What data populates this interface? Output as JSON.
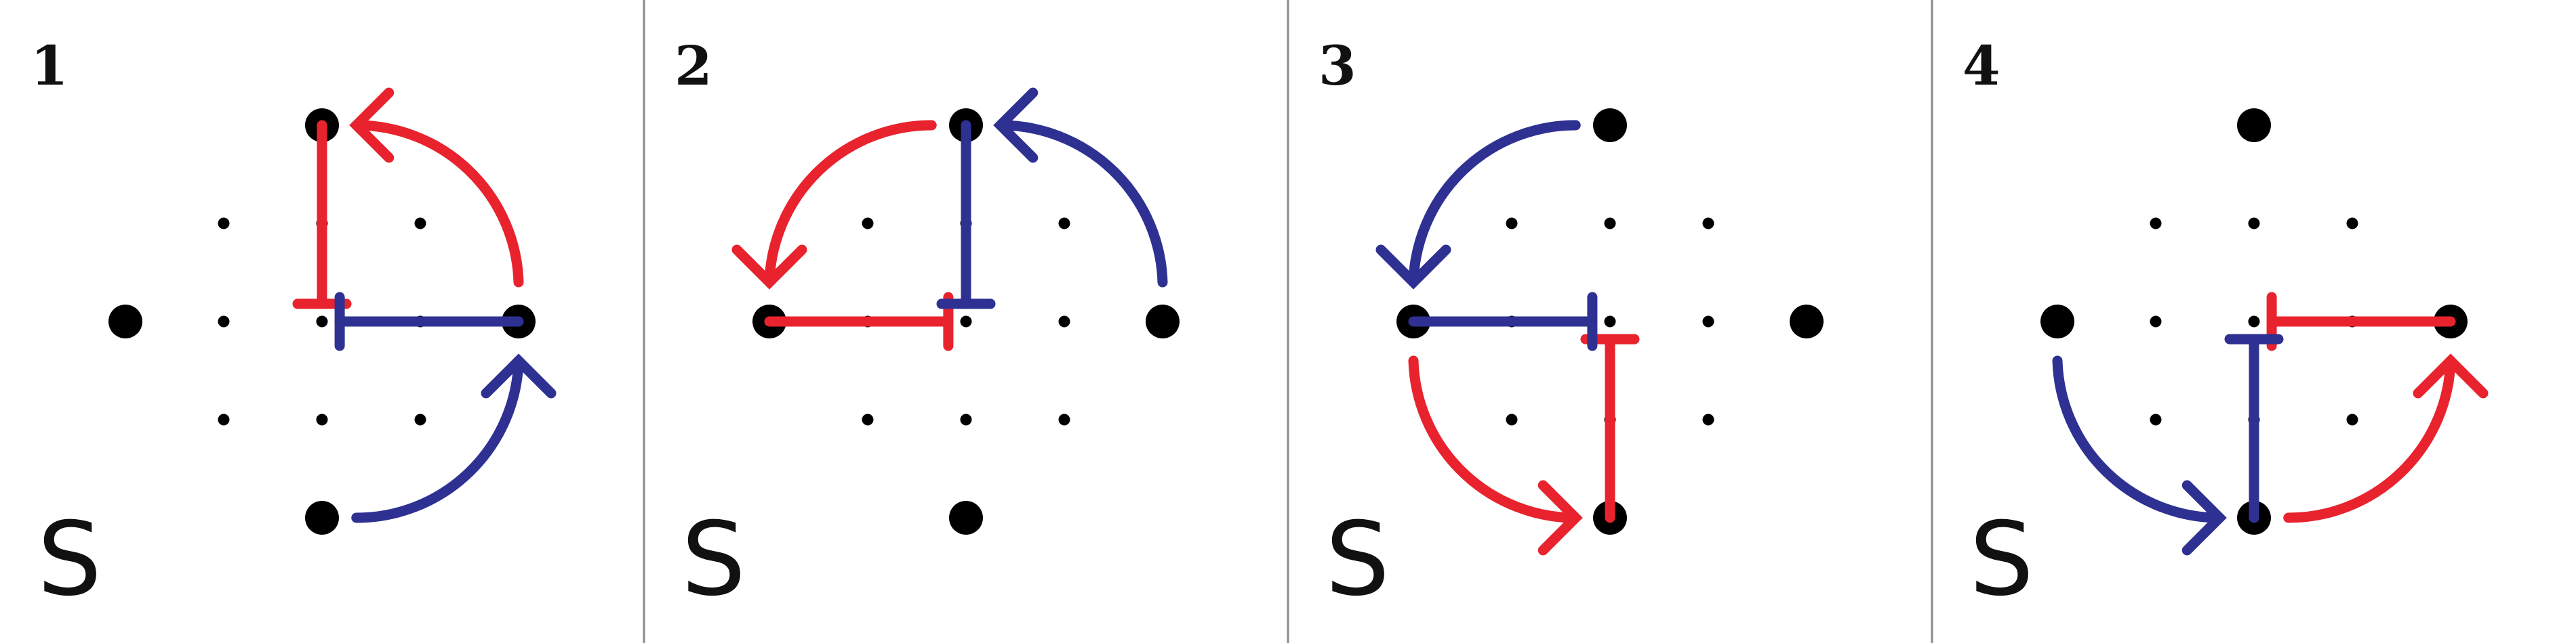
{
  "colors": {
    "red": "#e8232e",
    "blue": "#2e3192",
    "dot": "#000000",
    "divider": "#8a8a8a",
    "background": "#ffffff"
  },
  "panels": [
    {
      "number": "1",
      "label": "S",
      "bar_red": {
        "from": [
          0,
          -2
        ],
        "to": [
          0,
          -0.18
        ],
        "cap": "perpendicular"
      },
      "bar_blue": {
        "from": [
          2,
          0
        ],
        "to": [
          0.18,
          0
        ],
        "cap": "perpendicular"
      },
      "arc_red": {
        "start": [
          2,
          -0.4
        ],
        "end": [
          0.35,
          -2
        ],
        "sweep": 0,
        "arrowhead": "left"
      },
      "arc_blue": {
        "start": [
          0.35,
          2
        ],
        "end": [
          2,
          0.4
        ],
        "sweep": 0,
        "arrowhead": "up"
      }
    },
    {
      "number": "2",
      "label": "S",
      "bar_red": {
        "from": [
          -2,
          0
        ],
        "to": [
          -0.18,
          0
        ],
        "cap": "perpendicular"
      },
      "bar_blue": {
        "from": [
          0,
          -2
        ],
        "to": [
          0,
          -0.18
        ],
        "cap": "perpendicular"
      },
      "arc_red": {
        "start": [
          -0.35,
          -2
        ],
        "end": [
          -2,
          -0.4
        ],
        "sweep": 0,
        "arrowhead": "down"
      },
      "arc_blue": {
        "start": [
          2,
          -0.4
        ],
        "end": [
          0.35,
          -2
        ],
        "sweep": 0,
        "arrowhead": "left"
      }
    },
    {
      "number": "3",
      "label": "S",
      "bar_red": {
        "from": [
          0,
          2
        ],
        "to": [
          0,
          0.18
        ],
        "cap": "perpendicular"
      },
      "bar_blue": {
        "from": [
          -2,
          0
        ],
        "to": [
          -0.18,
          0
        ],
        "cap": "perpendicular"
      },
      "arc_red": {
        "start": [
          -2,
          0.4
        ],
        "end": [
          -0.35,
          2
        ],
        "sweep": 0,
        "arrowhead": "right"
      },
      "arc_blue": {
        "start": [
          -0.35,
          -2
        ],
        "end": [
          -2,
          -0.4
        ],
        "sweep": 0,
        "arrowhead": "down"
      }
    },
    {
      "number": "4",
      "label": "S",
      "bar_red": {
        "from": [
          2,
          0
        ],
        "to": [
          0.18,
          0
        ],
        "cap": "perpendicular"
      },
      "bar_blue": {
        "from": [
          0,
          2
        ],
        "to": [
          0,
          0.18
        ],
        "cap": "perpendicular"
      },
      "arc_red": {
        "start": [
          0.35,
          2
        ],
        "end": [
          2,
          0.4
        ],
        "sweep": 0,
        "arrowhead": "up"
      },
      "arc_blue": {
        "start": [
          -2,
          0.4
        ],
        "end": [
          -0.35,
          2
        ],
        "sweep": 0,
        "arrowhead": "right"
      }
    }
  ]
}
